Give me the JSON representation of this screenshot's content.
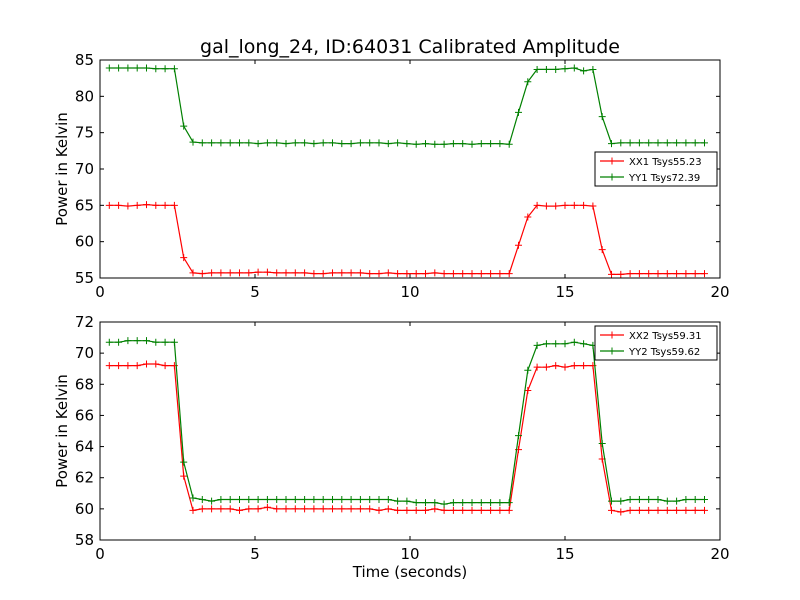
{
  "title": "gal_long_24, ID:64031 Calibrated Amplitude",
  "xlabel": "Time (seconds)",
  "colors": {
    "red": "#ff0000",
    "green": "#008000"
  },
  "chart_data": [
    {
      "type": "line",
      "title": "gal_long_24, ID:64031 Calibrated Amplitude",
      "xlabel": "",
      "ylabel": "Power in Kelvin",
      "xlim": [
        0,
        20
      ],
      "ylim": [
        55,
        85
      ],
      "xticks": [
        "0",
        "5",
        "10",
        "15",
        "20"
      ],
      "yticks": [
        "55",
        "60",
        "65",
        "70",
        "75",
        "80",
        "85"
      ],
      "grid": false,
      "legend_position": "center-right",
      "x": [
        0.3,
        0.6,
        0.9,
        1.2,
        1.5,
        1.8,
        2.1,
        2.4,
        2.7,
        3.0,
        3.3,
        3.6,
        3.9,
        4.2,
        4.5,
        4.8,
        5.1,
        5.4,
        5.7,
        6.0,
        6.3,
        6.6,
        6.9,
        7.2,
        7.5,
        7.8,
        8.1,
        8.4,
        8.7,
        9.0,
        9.3,
        9.6,
        9.9,
        10.2,
        10.5,
        10.8,
        11.1,
        11.4,
        11.7,
        12.0,
        12.3,
        12.6,
        12.9,
        13.2,
        13.5,
        13.8,
        14.1,
        14.4,
        14.7,
        15.0,
        15.3,
        15.6,
        15.9,
        16.2,
        16.5,
        16.8,
        17.1,
        17.4,
        17.7,
        18.0,
        18.3,
        18.6,
        18.9,
        19.2,
        19.5
      ],
      "series": [
        {
          "name": "XX1 Tsys55.23",
          "color": "#ff0000",
          "values": [
            65.0,
            65.0,
            64.9,
            65.0,
            65.1,
            65.0,
            65.0,
            65.0,
            57.8,
            55.7,
            55.6,
            55.7,
            55.7,
            55.7,
            55.7,
            55.7,
            55.8,
            55.8,
            55.7,
            55.7,
            55.7,
            55.7,
            55.6,
            55.6,
            55.7,
            55.7,
            55.7,
            55.7,
            55.6,
            55.6,
            55.7,
            55.6,
            55.6,
            55.6,
            55.6,
            55.7,
            55.6,
            55.6,
            55.6,
            55.6,
            55.6,
            55.6,
            55.6,
            55.6,
            59.5,
            63.4,
            65.0,
            64.9,
            64.9,
            65.0,
            65.0,
            65.0,
            64.9,
            58.9,
            55.5,
            55.5,
            55.6,
            55.6,
            55.6,
            55.6,
            55.6,
            55.6,
            55.6,
            55.6,
            55.6
          ]
        },
        {
          "name": "YY1 Tsys72.39",
          "color": "#008000",
          "values": [
            83.9,
            83.9,
            83.9,
            83.9,
            83.9,
            83.8,
            83.8,
            83.8,
            75.9,
            73.7,
            73.6,
            73.6,
            73.6,
            73.6,
            73.6,
            73.6,
            73.5,
            73.6,
            73.6,
            73.5,
            73.6,
            73.6,
            73.5,
            73.6,
            73.6,
            73.5,
            73.5,
            73.6,
            73.6,
            73.6,
            73.5,
            73.6,
            73.5,
            73.4,
            73.5,
            73.4,
            73.4,
            73.5,
            73.5,
            73.4,
            73.5,
            73.5,
            73.5,
            73.4,
            77.8,
            82.0,
            83.7,
            83.7,
            83.7,
            83.8,
            83.9,
            83.5,
            83.7,
            77.2,
            73.5,
            73.6,
            73.6,
            73.6,
            73.6,
            73.6,
            73.6,
            73.6,
            73.6,
            73.6,
            73.6
          ]
        }
      ]
    },
    {
      "type": "line",
      "title": "",
      "xlabel": "Time (seconds)",
      "ylabel": "Power in Kelvin",
      "xlim": [
        0,
        20
      ],
      "ylim": [
        58,
        72
      ],
      "xticks": [
        "0",
        "5",
        "10",
        "15",
        "20"
      ],
      "yticks": [
        "58",
        "60",
        "62",
        "64",
        "66",
        "68",
        "70",
        "72"
      ],
      "grid": false,
      "legend_position": "top-right",
      "x": [
        0.3,
        0.6,
        0.9,
        1.2,
        1.5,
        1.8,
        2.1,
        2.4,
        2.7,
        3.0,
        3.3,
        3.6,
        3.9,
        4.2,
        4.5,
        4.8,
        5.1,
        5.4,
        5.7,
        6.0,
        6.3,
        6.6,
        6.9,
        7.2,
        7.5,
        7.8,
        8.1,
        8.4,
        8.7,
        9.0,
        9.3,
        9.6,
        9.9,
        10.2,
        10.5,
        10.8,
        11.1,
        11.4,
        11.7,
        12.0,
        12.3,
        12.6,
        12.9,
        13.2,
        13.5,
        13.8,
        14.1,
        14.4,
        14.7,
        15.0,
        15.3,
        15.6,
        15.9,
        16.2,
        16.5,
        16.8,
        17.1,
        17.4,
        17.7,
        18.0,
        18.3,
        18.6,
        18.9,
        19.2,
        19.5
      ],
      "series": [
        {
          "name": "XX2 Tsys59.31",
          "color": "#ff0000",
          "values": [
            69.2,
            69.2,
            69.2,
            69.2,
            69.3,
            69.3,
            69.2,
            69.2,
            62.1,
            59.9,
            60.0,
            60.0,
            60.0,
            60.0,
            59.9,
            60.0,
            60.0,
            60.1,
            60.0,
            60.0,
            60.0,
            60.0,
            60.0,
            60.0,
            60.0,
            60.0,
            60.0,
            60.0,
            60.0,
            59.9,
            60.0,
            59.9,
            59.9,
            59.9,
            59.9,
            60.0,
            59.9,
            59.9,
            59.9,
            59.9,
            59.9,
            59.9,
            59.9,
            59.9,
            63.8,
            67.6,
            69.1,
            69.1,
            69.2,
            69.1,
            69.2,
            69.2,
            69.2,
            63.2,
            59.9,
            59.8,
            59.9,
            59.9,
            59.9,
            59.9,
            59.9,
            59.9,
            59.9,
            59.9,
            59.9
          ]
        },
        {
          "name": "YY2 Tsys59.62",
          "color": "#008000",
          "values": [
            70.7,
            70.7,
            70.8,
            70.8,
            70.8,
            70.7,
            70.7,
            70.7,
            63.0,
            60.7,
            60.6,
            60.5,
            60.6,
            60.6,
            60.6,
            60.6,
            60.6,
            60.6,
            60.6,
            60.6,
            60.6,
            60.6,
            60.6,
            60.6,
            60.6,
            60.6,
            60.6,
            60.6,
            60.6,
            60.6,
            60.6,
            60.5,
            60.5,
            60.4,
            60.4,
            60.4,
            60.3,
            60.4,
            60.4,
            60.4,
            60.4,
            60.4,
            60.4,
            60.4,
            64.7,
            68.9,
            70.5,
            70.6,
            70.6,
            70.6,
            70.7,
            70.6,
            70.5,
            64.2,
            60.5,
            60.5,
            60.6,
            60.6,
            60.6,
            60.6,
            60.5,
            60.5,
            60.6,
            60.6,
            60.6
          ]
        }
      ]
    }
  ]
}
